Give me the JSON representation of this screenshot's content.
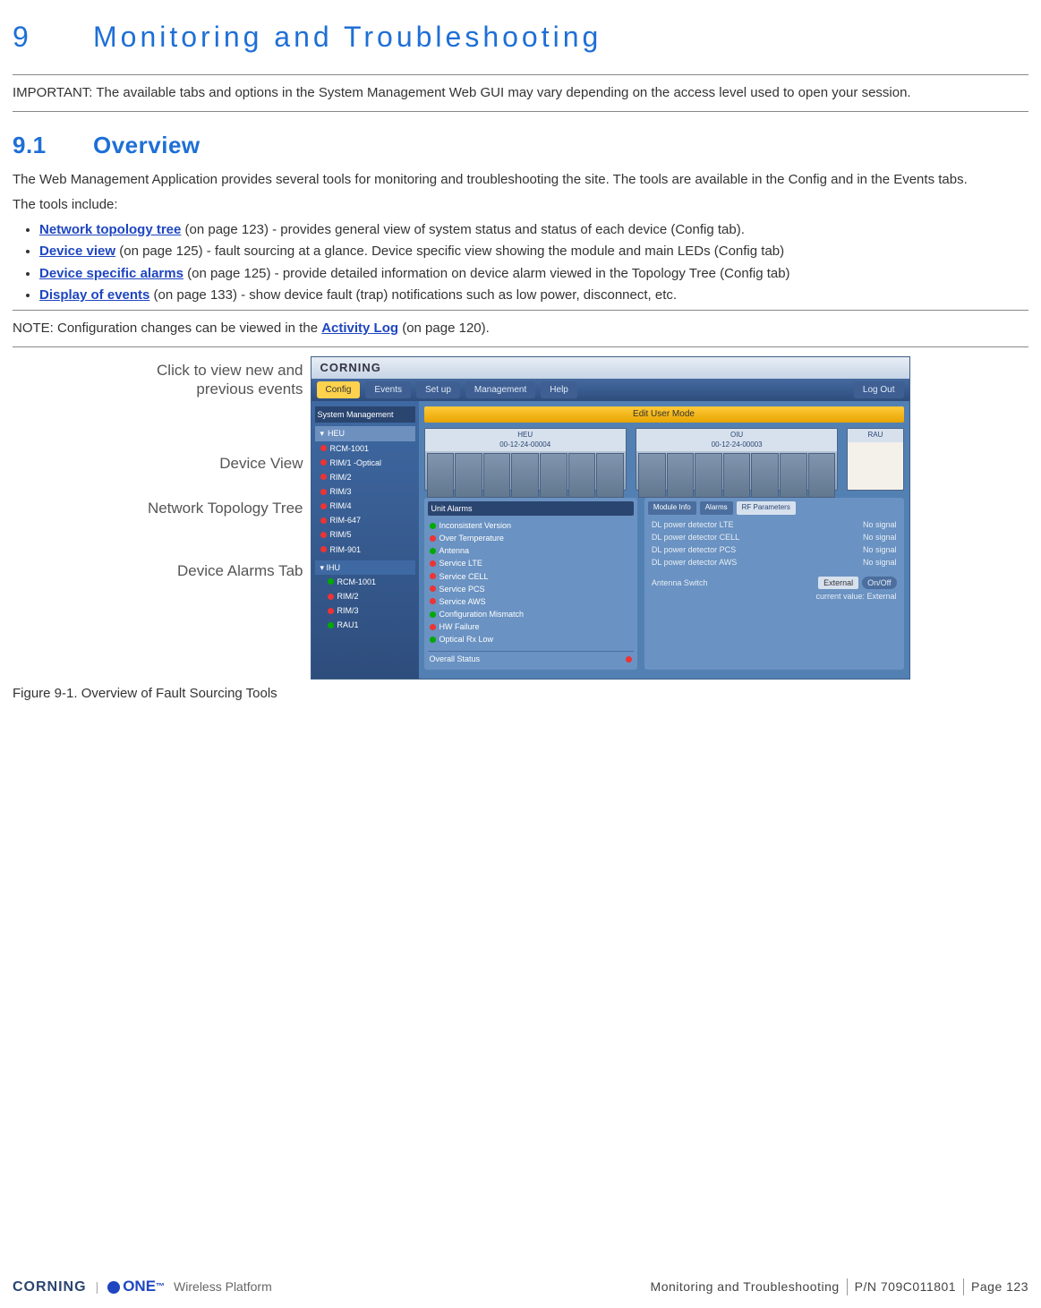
{
  "chapter": {
    "number": "9",
    "title": "Monitoring and Troubleshooting"
  },
  "important": "IMPORTANT: The available tabs and options in the System Management Web GUI may vary depending on the access level used to open your session.",
  "section": {
    "number": "9.1",
    "title": "Overview"
  },
  "intro1": "The Web Management Application provides several tools for monitoring and troubleshooting the site. The tools are available in the Config and in the Events tabs.",
  "intro2": "The tools include:",
  "bullets": [
    {
      "link": "Network topology tree",
      "rest": " (on page 123) - provides general view of system status and status of each device (Config tab)."
    },
    {
      "link": "Device view",
      "rest": " (on page 125) - fault sourcing at a glance. Device specific view showing the module and main LEDs (Config tab)"
    },
    {
      "link": "Device specific alarms",
      "rest": " (on page 125) - provide detailed information on device alarm viewed in the Topology Tree (Config tab)"
    },
    {
      "link": "Display of events",
      "rest": " (on page 133) - show device fault (trap) notifications such as low power, disconnect, etc."
    }
  ],
  "note_pre": "NOTE: Configuration changes can be viewed in the ",
  "note_link": "Activity Log",
  "note_post": " (on page 120).",
  "callouts": {
    "events": "Click to view new and previous events",
    "device_view": "Device View",
    "tree": "Network Topology Tree",
    "alarms": "Device Alarms Tab"
  },
  "screenshot": {
    "logo": "CORNING",
    "tabs": [
      "Config",
      "Events",
      "Set up",
      "Management",
      "Help"
    ],
    "logout": "Log Out",
    "tree_header": "System Management",
    "tree_root": "HEU",
    "tree_items": [
      {
        "color": "#e33",
        "label": "RCM-1001"
      },
      {
        "color": "#e33",
        "label": "RIM/1 -Optical"
      },
      {
        "color": "#e33",
        "label": "RIM/2"
      },
      {
        "color": "#e33",
        "label": "RIM/3"
      },
      {
        "color": "#e33",
        "label": "RIM/4"
      },
      {
        "color": "#e33",
        "label": "RIM-647"
      },
      {
        "color": "#e33",
        "label": "RIM/5"
      },
      {
        "color": "#e33",
        "label": "RIM-901"
      }
    ],
    "tree_sub": [
      {
        "color": "#0a0",
        "label": "RCM-1001"
      },
      {
        "color": "#e33",
        "label": "RIM/2"
      },
      {
        "color": "#e33",
        "label": "RIM/3"
      },
      {
        "color": "#0a0",
        "label": "RAU1"
      }
    ],
    "mode_bar": "Edit User Mode",
    "devices": [
      {
        "title": "HEU",
        "sub": "00-12-24-00004",
        "slots": 7
      },
      {
        "title": "OIU",
        "sub": "00-12-24-00003",
        "slots": 7
      },
      {
        "title": "RAU",
        "sub": "",
        "slots": 0
      }
    ],
    "alarm_panel_title": "Unit Alarms",
    "alarms": [
      {
        "color": "#0a0",
        "label": "Inconsistent Version"
      },
      {
        "color": "#e33",
        "label": "Over Temperature"
      },
      {
        "color": "#0a0",
        "label": "Antenna"
      },
      {
        "color": "#e33",
        "label": "Service LTE"
      },
      {
        "color": "#e33",
        "label": "Service CELL"
      },
      {
        "color": "#e33",
        "label": "Service PCS"
      },
      {
        "color": "#e33",
        "label": "Service AWS"
      },
      {
        "color": "#0a0",
        "label": "Configuration Mismatch"
      },
      {
        "color": "#e33",
        "label": "HW Failure"
      },
      {
        "color": "#0a0",
        "label": "Optical Rx Low"
      }
    ],
    "overall": "Overall Status",
    "right_tabs": [
      "Module Info",
      "Alarms",
      "RF Parameters"
    ],
    "params": [
      {
        "k": "DL power detector LTE",
        "v": "No signal"
      },
      {
        "k": "DL power detector CELL",
        "v": "No signal"
      },
      {
        "k": "DL power detector PCS",
        "v": "No signal"
      },
      {
        "k": "DL power detector AWS",
        "v": "No signal"
      }
    ],
    "att": {
      "label": "Antenna Switch",
      "dd": "External",
      "btn": "On/Off",
      "post": "current value: External"
    }
  },
  "figure_caption": "Figure 9-1. Overview of Fault Sourcing Tools",
  "footer": {
    "brand1": "CORNING",
    "brand2": "ONE",
    "brand2_tm": "™",
    "brand3": "Wireless Platform",
    "center": "Monitoring and Troubleshooting",
    "pn": "P/N 709C011801",
    "page": "Page 123"
  },
  "colors": {
    "heading": "#1e6fd6",
    "link": "#1e46c0",
    "led_red": "#e33",
    "led_green": "#0a0"
  }
}
